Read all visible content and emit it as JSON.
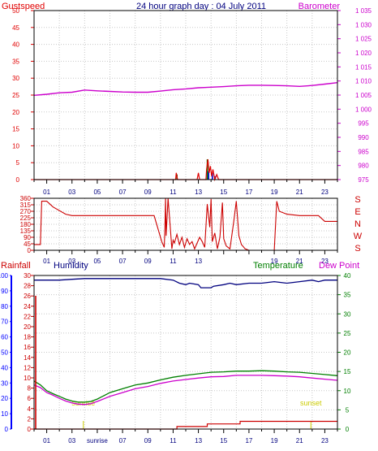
{
  "colors": {
    "gust": "#e00000",
    "baro": "#cc00cc",
    "wind": "#cc0000",
    "hum": "#00007f",
    "temp": "#007f00",
    "dew": "#cc00cc",
    "rain": "#cc0000",
    "sun": "#cccc00",
    "hours": "#00007f",
    "hum_axis": "#0000ff",
    "grid": "#c8c8c8",
    "rain_bar_green": "#007f00",
    "rain_bar_blue": "#0000cc"
  },
  "chart_data": [
    {
      "id": "gust-baro",
      "type": "line",
      "title": "24 hour graph day : 04 July 2011",
      "left_label": "Gustspeed",
      "right_label": "Barometer",
      "x_ticks": [
        "01",
        "03",
        "05",
        "07",
        "09",
        "11",
        "13",
        "15",
        "17",
        "19",
        "21",
        "23"
      ],
      "ylim_left": [
        0,
        50
      ],
      "yticks_left": [
        "0",
        "5",
        "10",
        "15",
        "20",
        "25",
        "30",
        "35",
        "40",
        "45",
        "50"
      ],
      "ylim_right": [
        975,
        1035
      ],
      "yticks_right": [
        "975",
        "980",
        "985",
        "990",
        "995",
        "1 000",
        "1 005",
        "1 010",
        "1 015",
        "1 020",
        "1 025",
        "1 030",
        "1 035"
      ],
      "grid": true,
      "series": [
        {
          "name": "Barometer",
          "axis": "right",
          "x": [
            0,
            1,
            2,
            3,
            4,
            5,
            6,
            7,
            8,
            9,
            10,
            11,
            12,
            13,
            14,
            15,
            16,
            17,
            18,
            19,
            20,
            21,
            22,
            23,
            24
          ],
          "y": [
            1004.9,
            1005.3,
            1005.8,
            1006,
            1006.8,
            1006.5,
            1006.3,
            1006.1,
            1006,
            1006,
            1006.4,
            1006.9,
            1007.2,
            1007.6,
            1007.8,
            1008,
            1008.3,
            1008.5,
            1008.5,
            1008.4,
            1008.3,
            1008.1,
            1008.4,
            1008.9,
            1009.4
          ]
        },
        {
          "name": "Gustspeed",
          "axis": "left",
          "x": [
            0,
            11.2,
            11.25,
            11.35,
            11.45,
            12.9,
            13,
            13.1,
            13.2,
            13.6,
            13.65,
            13.75,
            13.85,
            13.95,
            14.05,
            14.15,
            14.3,
            14.45,
            14.6,
            24
          ],
          "y": [
            0,
            0,
            2,
            0,
            0,
            0,
            2,
            0,
            0,
            0,
            3,
            6,
            2,
            4,
            1,
            3,
            0,
            1.5,
            0,
            0
          ]
        }
      ],
      "rain_rate_bars": [
        {
          "x": 11.3,
          "y": 1.5,
          "color": "green"
        },
        {
          "x": 13.7,
          "y": 6,
          "color": "green"
        },
        {
          "x": 13.8,
          "y": 2.5,
          "color": "blue"
        },
        {
          "x": 14.1,
          "y": 2,
          "color": "blue"
        },
        {
          "x": 14.3,
          "y": 1,
          "color": "blue"
        }
      ]
    },
    {
      "id": "wind-dir",
      "type": "line",
      "x_ticks": [
        "01",
        "03",
        "05",
        "07",
        "09",
        "11",
        "13",
        "15",
        "17",
        "19",
        "21",
        "23"
      ],
      "ylim": [
        0,
        360
      ],
      "yticks": [
        "0",
        "45",
        "90",
        "135",
        "180",
        "225",
        "270",
        "315",
        "360"
      ],
      "right_labels": [
        "S",
        "E",
        "N",
        "W",
        "S"
      ],
      "grid": true,
      "series": [
        {
          "name": "Wind direction",
          "x": [
            0,
            0.5,
            0.6,
            1,
            1.5,
            2.5,
            3,
            9.2,
            9.5,
            10.1,
            10.3,
            10.35,
            10.4,
            10.45,
            10.6,
            10.9,
            11,
            11.1,
            11.3,
            11.5,
            11.7,
            11.9,
            12.1,
            12.3,
            12.5,
            12.7,
            12.9,
            13.1,
            13.3,
            13.5,
            13.7,
            13.9,
            14,
            14.1,
            14.3,
            14.5,
            14.7,
            14.9,
            15,
            15.2,
            15.5,
            15.8,
            16,
            16.2,
            16.4,
            16.7,
            17,
            17.2,
            17.5,
            18,
            18.5,
            19,
            19.2,
            19.4,
            20,
            21,
            22.5,
            23,
            23.5,
            24
          ],
          "y": [
            40,
            40,
            340,
            340,
            300,
            250,
            240,
            240,
            240,
            60,
            20,
            150,
            360,
            100,
            360,
            10,
            70,
            50,
            110,
            40,
            90,
            20,
            80,
            40,
            60,
            10,
            50,
            90,
            60,
            20,
            320,
            160,
            355,
            60,
            120,
            10,
            90,
            330,
            80,
            30,
            10,
            200,
            340,
            100,
            40,
            10,
            0,
            0,
            0,
            0,
            0,
            0,
            340,
            270,
            250,
            240,
            240,
            200,
            200,
            200
          ]
        }
      ]
    },
    {
      "id": "temp-hum-rain",
      "type": "line",
      "left_label": "Rainfall",
      "humidity_label": "Humidity",
      "temperature_label": "Temperature",
      "dewpoint_label": "Dew Point",
      "x_ticks": [
        "01",
        "03",
        "05",
        "07",
        "09",
        "11",
        "13",
        "15",
        "17",
        "19",
        "21",
        "23"
      ],
      "sunrise_label": "sunrise",
      "sunset_label": "sunset",
      "ylim_left": [
        0,
        30
      ],
      "yticks_left": [
        "0",
        "2",
        "4",
        "6",
        "8",
        "10",
        "12",
        "14",
        "16",
        "18",
        "20",
        "22",
        "24",
        "26",
        "28",
        "30"
      ],
      "ylim_humidity": [
        0,
        100
      ],
      "yticks_humidity": [
        "0",
        "10",
        "20",
        "30",
        "40",
        "50",
        "60",
        "70",
        "80",
        "90",
        "100"
      ],
      "ylim_right": [
        0,
        40
      ],
      "yticks_right": [
        "0",
        "5",
        "10",
        "15",
        "20",
        "25",
        "30",
        "35",
        "40"
      ],
      "grid": true,
      "series": [
        {
          "name": "Humidity",
          "axis": "humidity",
          "x": [
            0,
            1,
            2,
            3,
            4,
            5,
            6,
            7,
            8,
            9,
            10,
            11,
            11.5,
            12,
            12.3,
            13,
            13.2,
            14,
            14.2,
            15,
            15.5,
            16,
            17,
            18,
            19,
            20,
            21,
            22,
            22.5,
            23,
            24
          ],
          "y": [
            97,
            97,
            97,
            97.5,
            98,
            98,
            98,
            98,
            98,
            98,
            98,
            97,
            95,
            94,
            95,
            94,
            92,
            92,
            93,
            94,
            95,
            94,
            95,
            95,
            96,
            95,
            96,
            97,
            96,
            97,
            97
          ]
        },
        {
          "name": "Temperature",
          "axis": "right",
          "x": [
            0,
            0.5,
            1,
            1.5,
            2,
            2.5,
            3,
            3.5,
            4,
            4.5,
            5,
            6,
            7,
            8,
            9,
            10,
            11,
            12,
            13,
            14,
            15,
            16,
            17,
            18,
            19,
            20,
            21,
            22,
            23,
            24
          ],
          "y": [
            12.5,
            11.5,
            10,
            9.2,
            8.5,
            7.8,
            7.3,
            7,
            7,
            7.2,
            7.8,
            9.5,
            10.5,
            11.5,
            12,
            12.8,
            13.5,
            14,
            14.4,
            14.8,
            14.9,
            15.1,
            15.1,
            15.2,
            15.1,
            14.9,
            14.8,
            14.5,
            14.2,
            13.9
          ]
        },
        {
          "name": "Dew Point",
          "axis": "right",
          "x": [
            0,
            0.5,
            1,
            1.5,
            2,
            2.5,
            3,
            3.5,
            4,
            4.5,
            5,
            6,
            7,
            8,
            9,
            10,
            11,
            12,
            13,
            14,
            15,
            16,
            17,
            18,
            19,
            20,
            21,
            22,
            23,
            24
          ],
          "y": [
            11.5,
            10.8,
            9.5,
            8.8,
            8,
            7.3,
            6.8,
            6.5,
            6.4,
            6.6,
            7.2,
            8.5,
            9.5,
            10.5,
            11.1,
            11.9,
            12.5,
            12.9,
            13.3,
            13.6,
            13.7,
            14,
            14,
            14,
            13.9,
            13.8,
            13.6,
            13.3,
            13,
            12.7
          ]
        },
        {
          "name": "Rainfall",
          "axis": "left",
          "x": [
            0,
            11.2,
            11.3,
            13.6,
            13.7,
            16.2,
            16.3,
            24
          ],
          "y": [
            0,
            0,
            0.5,
            0.5,
            1,
            1,
            1.5,
            1.5
          ]
        }
      ]
    }
  ]
}
